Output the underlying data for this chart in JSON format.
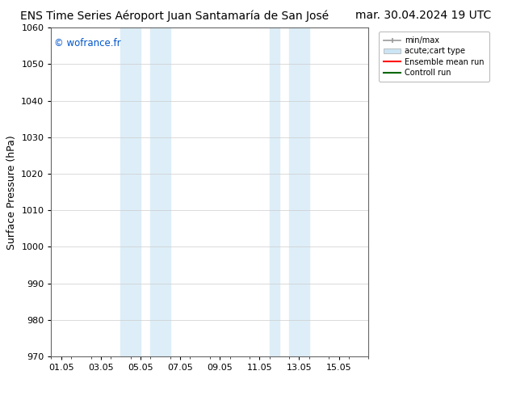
{
  "title_left": "ENS Time Series Aéroport Juan Santamaría de San José",
  "title_right": "mar. 30.04.2024 19 UTC",
  "ylabel": "Surface Pressure (hPa)",
  "ylim": [
    970,
    1060
  ],
  "yticks": [
    970,
    980,
    990,
    1000,
    1010,
    1020,
    1030,
    1040,
    1050,
    1060
  ],
  "xlabel_ticks": [
    "01.05",
    "03.05",
    "05.05",
    "07.05",
    "09.05",
    "11.05",
    "13.05",
    "15.05"
  ],
  "x_tick_positions": [
    0,
    2,
    4,
    6,
    8,
    10,
    12,
    14
  ],
  "xlim": [
    -0.5,
    15.5
  ],
  "bg_color": "#ffffff",
  "plot_bg_color": "#ffffff",
  "shaded_bands": [
    {
      "xstart": 3.0,
      "xend": 4.0
    },
    {
      "xstart": 4.5,
      "xend": 5.5
    },
    {
      "xstart": 10.5,
      "xend": 11.0
    },
    {
      "xstart": 11.5,
      "xend": 12.5
    }
  ],
  "shaded_color": "#ddeef8",
  "watermark": "© wofrance.fr",
  "watermark_color": "#0055cc",
  "legend_labels": [
    "min/max",
    "acute;cart type",
    "Ensemble mean run",
    "Controll run"
  ],
  "legend_colors": [
    "#aaaaaa",
    "#cce5f5",
    "#ff0000",
    "#006600"
  ],
  "grid_color": "#cccccc",
  "tick_label_fontsize": 8,
  "title_fontsize": 10,
  "ylabel_fontsize": 9
}
